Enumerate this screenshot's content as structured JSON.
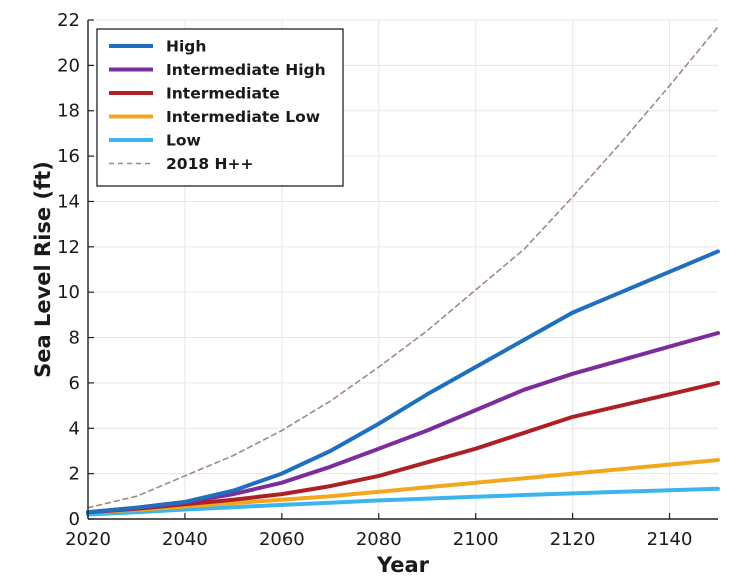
{
  "chart_data": {
    "type": "line",
    "title": "",
    "xlabel": "Year",
    "ylabel": "Sea Level Rise (ft)",
    "xlim": [
      2020,
      2150
    ],
    "ylim": [
      0,
      22
    ],
    "xticks": [
      2020,
      2040,
      2060,
      2080,
      2100,
      2120,
      2140
    ],
    "yticks": [
      0,
      2,
      4,
      6,
      8,
      10,
      12,
      14,
      16,
      18,
      20,
      22
    ],
    "grid": true,
    "legend_position": "top-left",
    "series": [
      {
        "name": "High",
        "color": "#1f6fbf",
        "style": "solid",
        "x": [
          2020,
          2030,
          2040,
          2050,
          2060,
          2070,
          2080,
          2090,
          2100,
          2110,
          2120,
          2130,
          2140,
          2150
        ],
        "y": [
          0.3,
          0.5,
          0.75,
          1.25,
          2.0,
          3.0,
          4.2,
          5.5,
          6.7,
          7.9,
          9.1,
          10.0,
          10.9,
          11.8
        ]
      },
      {
        "name": "Intermediate High",
        "color": "#7b2d9c",
        "style": "solid",
        "x": [
          2020,
          2030,
          2040,
          2050,
          2060,
          2070,
          2080,
          2090,
          2100,
          2110,
          2120,
          2130,
          2140,
          2150
        ],
        "y": [
          0.3,
          0.5,
          0.75,
          1.1,
          1.6,
          2.3,
          3.1,
          3.9,
          4.8,
          5.7,
          6.4,
          7.0,
          7.6,
          8.2
        ]
      },
      {
        "name": "Intermediate",
        "color": "#ad2027",
        "style": "solid",
        "x": [
          2020,
          2030,
          2040,
          2050,
          2060,
          2070,
          2080,
          2090,
          2100,
          2110,
          2120,
          2130,
          2140,
          2150
        ],
        "y": [
          0.3,
          0.45,
          0.65,
          0.85,
          1.1,
          1.45,
          1.9,
          2.5,
          3.1,
          3.8,
          4.5,
          5.0,
          5.5,
          6.0
        ]
      },
      {
        "name": "Intermediate Low",
        "color": "#f2a81d",
        "style": "solid",
        "x": [
          2020,
          2030,
          2040,
          2050,
          2060,
          2070,
          2080,
          2090,
          2100,
          2110,
          2120,
          2130,
          2140,
          2150
        ],
        "y": [
          0.3,
          0.4,
          0.55,
          0.7,
          0.85,
          1.0,
          1.2,
          1.4,
          1.6,
          1.8,
          2.0,
          2.2,
          2.4,
          2.6
        ]
      },
      {
        "name": "Low",
        "color": "#3cb4ee",
        "style": "solid",
        "x": [
          2020,
          2030,
          2040,
          2050,
          2060,
          2070,
          2080,
          2090,
          2100,
          2110,
          2120,
          2130,
          2140,
          2150
        ],
        "y": [
          0.2,
          0.3,
          0.42,
          0.52,
          0.62,
          0.72,
          0.82,
          0.9,
          0.98,
          1.06,
          1.13,
          1.2,
          1.27,
          1.33
        ]
      },
      {
        "name": "2018 H++",
        "color": "#a08a80",
        "style": "dashed",
        "x": [
          2020,
          2030,
          2040,
          2050,
          2060,
          2070,
          2080,
          2090,
          2100,
          2110,
          2120,
          2130,
          2140,
          2150
        ],
        "y": [
          0.5,
          1.0,
          1.9,
          2.8,
          3.9,
          5.2,
          6.7,
          8.3,
          10.1,
          11.9,
          14.2,
          16.6,
          19.1,
          21.7
        ]
      }
    ]
  }
}
